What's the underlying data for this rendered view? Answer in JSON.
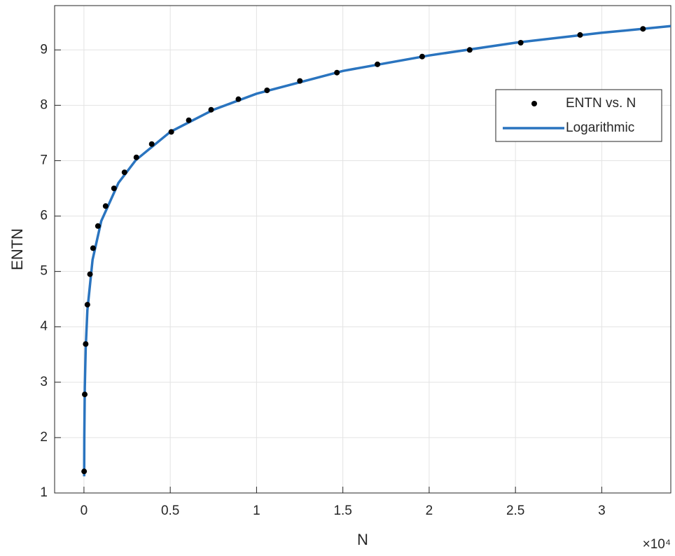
{
  "chart_data": {
    "type": "scatter",
    "xlabel": "N",
    "ylabel": "ENTN",
    "x_exponent": "×10⁴",
    "xlim": [
      -1700,
      34000
    ],
    "ylim": [
      1,
      9.8
    ],
    "xticks": [
      0,
      {
        "value": 5000,
        "label": "0.5"
      },
      {
        "value": 10000,
        "label": "1"
      },
      {
        "value": 15000,
        "label": "1.5"
      },
      {
        "value": 20000,
        "label": "2"
      },
      {
        "value": 25000,
        "label": "2.5"
      },
      {
        "value": 30000,
        "label": "3"
      }
    ],
    "yticks": [
      1,
      2,
      3,
      4,
      5,
      6,
      7,
      8,
      9
    ],
    "grid": true,
    "legend": "upper right",
    "series": [
      {
        "name": "ENTN vs. N",
        "type": "scatter",
        "color": "#000000",
        "x": [
          10,
          45,
          100,
          200,
          350,
          526,
          810,
          1255,
          1740,
          2348,
          3036,
          3927,
          5061,
          6073,
          7368,
          8947,
          10607,
          12510,
          14656,
          17004,
          19595,
          22348,
          25304,
          28745,
          32389
        ],
        "values": [
          1.39,
          2.78,
          3.69,
          4.4,
          4.95,
          5.42,
          5.82,
          6.18,
          6.5,
          6.79,
          7.06,
          7.3,
          7.52,
          7.73,
          7.92,
          8.11,
          8.27,
          8.44,
          8.59,
          8.74,
          8.88,
          9.0,
          9.13,
          9.27,
          9.38
        ]
      },
      {
        "name": "Logarithmic",
        "type": "line",
        "color": "#2a74bf",
        "x": [
          10,
          20,
          50,
          100,
          200,
          500,
          1000,
          2000,
          3000,
          5000,
          7500,
          10000,
          15000,
          20000,
          25000,
          30000,
          34000
        ],
        "values": [
          1.3,
          2.0,
          2.91,
          3.61,
          4.3,
          5.21,
          5.91,
          6.6,
          7.01,
          7.52,
          7.92,
          8.21,
          8.62,
          8.9,
          9.13,
          9.31,
          9.43
        ]
      }
    ]
  }
}
